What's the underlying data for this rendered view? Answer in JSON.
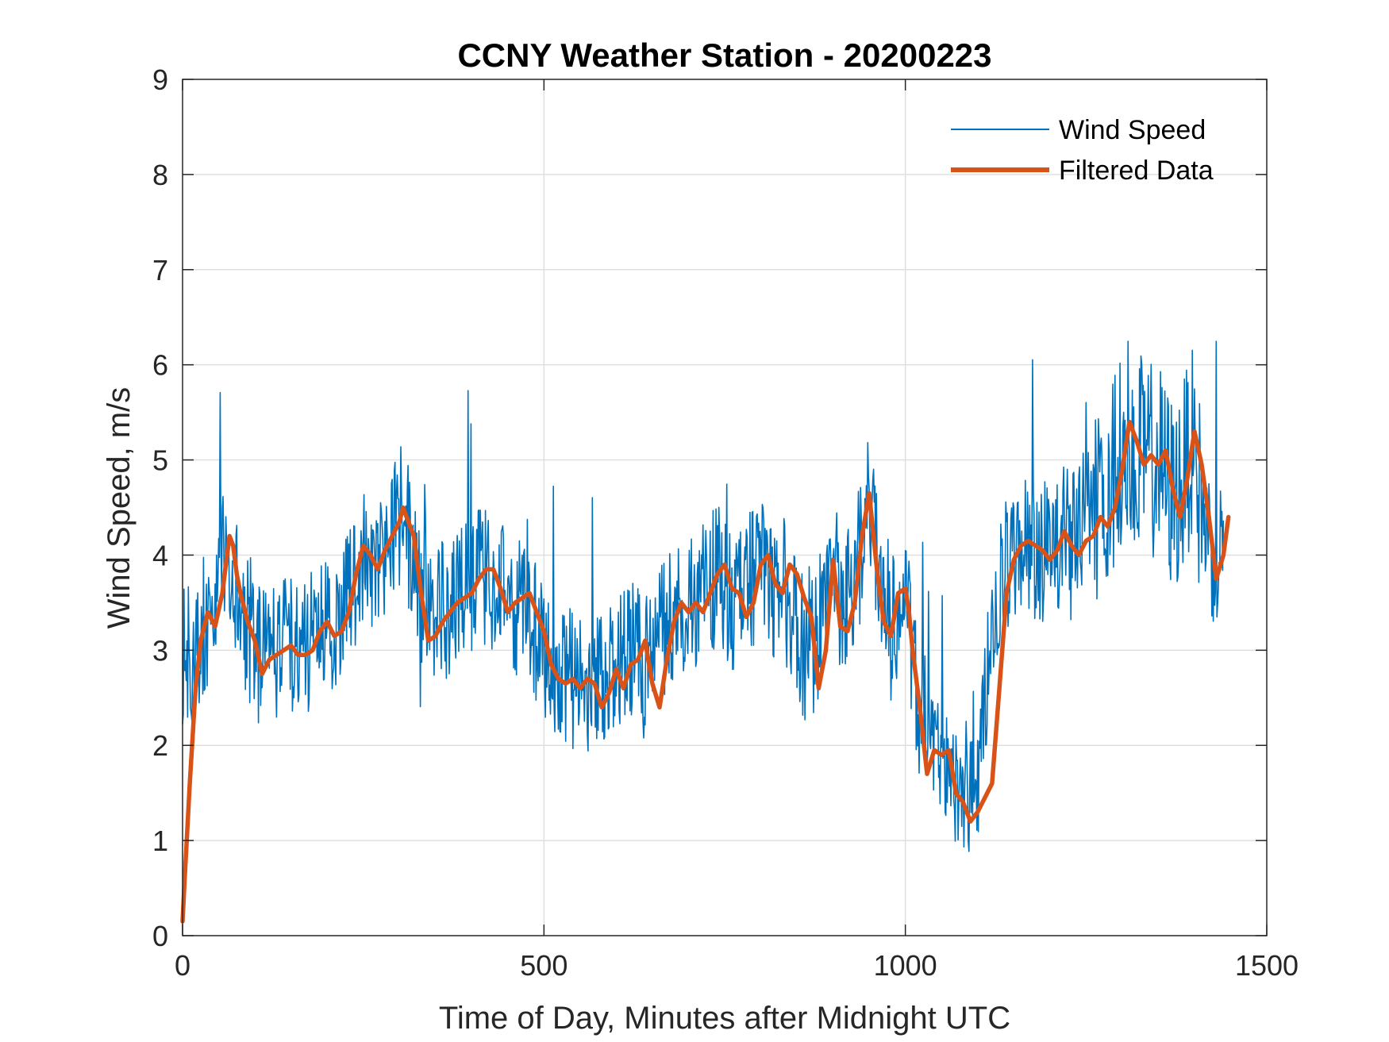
{
  "chart_data": {
    "type": "line",
    "title": "CCNY Weather Station - 20200223",
    "xlabel": "Time of Day, Minutes after Midnight UTC",
    "ylabel": "Wind Speed, m/s",
    "xlim": [
      0,
      1500
    ],
    "ylim": [
      0,
      9
    ],
    "xticks": [
      0,
      500,
      1000,
      1500
    ],
    "yticks": [
      0,
      1,
      2,
      3,
      4,
      5,
      6,
      7,
      8,
      9
    ],
    "xtick_labels": [
      "0",
      "500",
      "1000",
      "1500"
    ],
    "ytick_labels": [
      "0",
      "1",
      "2",
      "3",
      "4",
      "5",
      "6",
      "7",
      "8",
      "9"
    ],
    "grid": true,
    "legend_position": "top-right",
    "series": [
      {
        "name": "Wind Speed",
        "color": "#0072BD",
        "style": "thin",
        "noise_amplitude": 0.75,
        "x": [
          0,
          15,
          30,
          45,
          55,
          65,
          75,
          90,
          110,
          130,
          150,
          170,
          190,
          210,
          230,
          250,
          270,
          290,
          305,
          320,
          340,
          360,
          380,
          400,
          420,
          440,
          460,
          480,
          500,
          520,
          540,
          560,
          580,
          600,
          620,
          640,
          660,
          680,
          700,
          720,
          740,
          760,
          780,
          800,
          820,
          840,
          860,
          875,
          890,
          910,
          930,
          950,
          965,
          980,
          1000,
          1020,
          1040,
          1060,
          1080,
          1100,
          1120,
          1140,
          1160,
          1180,
          1200,
          1220,
          1240,
          1260,
          1280,
          1300,
          1310,
          1330,
          1350,
          1370,
          1385,
          1395,
          1410,
          1430,
          1440
        ],
        "values": [
          2.9,
          3.0,
          3.3,
          3.5,
          4.2,
          4.0,
          3.6,
          3.2,
          2.9,
          3.0,
          3.1,
          3.0,
          3.2,
          3.3,
          3.6,
          4.0,
          3.9,
          4.3,
          4.5,
          3.9,
          3.2,
          3.4,
          3.6,
          3.7,
          3.8,
          3.6,
          3.5,
          3.3,
          3.0,
          2.8,
          2.7,
          2.6,
          2.7,
          2.9,
          3.0,
          2.8,
          3.2,
          3.4,
          3.5,
          3.6,
          3.8,
          3.5,
          3.7,
          3.9,
          3.6,
          3.5,
          3.0,
          3.1,
          3.6,
          3.4,
          3.8,
          4.4,
          3.8,
          3.4,
          3.5,
          2.4,
          1.9,
          1.7,
          1.4,
          1.6,
          3.2,
          3.9,
          4.1,
          4.0,
          4.1,
          4.2,
          4.2,
          4.5,
          4.6,
          5.2,
          5.3,
          5.0,
          5.0,
          4.6,
          4.8,
          5.2,
          4.5,
          3.9,
          4.2
        ]
      },
      {
        "name": "Filtered Data",
        "color": "#D95319",
        "style": "thick",
        "x": [
          0,
          3,
          10,
          18,
          25,
          35,
          45,
          55,
          60,
          65,
          70,
          75,
          80,
          90,
          100,
          110,
          120,
          130,
          140,
          150,
          160,
          170,
          180,
          190,
          200,
          210,
          220,
          230,
          240,
          250,
          260,
          270,
          280,
          290,
          300,
          305,
          310,
          320,
          330,
          340,
          350,
          360,
          370,
          380,
          390,
          400,
          410,
          420,
          430,
          440,
          450,
          460,
          470,
          480,
          490,
          500,
          510,
          520,
          530,
          540,
          550,
          560,
          570,
          580,
          590,
          600,
          610,
          620,
          630,
          640,
          650,
          660,
          670,
          680,
          690,
          700,
          710,
          720,
          730,
          740,
          750,
          760,
          770,
          780,
          790,
          800,
          810,
          820,
          830,
          840,
          850,
          860,
          870,
          880,
          890,
          900,
          910,
          920,
          930,
          940,
          950,
          960,
          970,
          980,
          990,
          1000,
          1005,
          1010,
          1020,
          1030,
          1040,
          1050,
          1060,
          1070,
          1080,
          1090,
          1100,
          1110,
          1120,
          1130,
          1140,
          1150,
          1160,
          1170,
          1180,
          1190,
          1200,
          1210,
          1220,
          1230,
          1240,
          1250,
          1260,
          1270,
          1280,
          1290,
          1300,
          1310,
          1320,
          1330,
          1340,
          1350,
          1360,
          1370,
          1380,
          1390,
          1400,
          1410,
          1420,
          1430,
          1440,
          1447
        ],
        "values": [
          0.15,
          0.6,
          1.6,
          2.6,
          3.1,
          3.4,
          3.25,
          3.6,
          3.9,
          4.2,
          4.1,
          3.8,
          3.6,
          3.3,
          3.1,
          2.75,
          2.9,
          2.95,
          3.0,
          3.05,
          2.95,
          2.95,
          3.0,
          3.2,
          3.3,
          3.15,
          3.2,
          3.4,
          3.8,
          4.1,
          4.0,
          3.85,
          4.05,
          4.2,
          4.35,
          4.5,
          4.4,
          4.2,
          3.6,
          3.1,
          3.15,
          3.3,
          3.4,
          3.5,
          3.55,
          3.6,
          3.75,
          3.85,
          3.85,
          3.65,
          3.4,
          3.5,
          3.55,
          3.6,
          3.4,
          3.2,
          2.85,
          2.7,
          2.65,
          2.7,
          2.6,
          2.7,
          2.65,
          2.4,
          2.55,
          2.8,
          2.6,
          2.85,
          2.9,
          3.1,
          2.65,
          2.4,
          2.9,
          3.3,
          3.5,
          3.4,
          3.5,
          3.4,
          3.6,
          3.8,
          3.9,
          3.65,
          3.6,
          3.35,
          3.5,
          3.9,
          4.0,
          3.7,
          3.6,
          3.9,
          3.8,
          3.55,
          3.35,
          2.6,
          3.0,
          3.95,
          3.25,
          3.2,
          3.5,
          4.2,
          4.65,
          3.9,
          3.3,
          3.15,
          3.6,
          3.65,
          3.4,
          3.0,
          2.4,
          1.7,
          1.95,
          1.9,
          1.95,
          1.5,
          1.4,
          1.2,
          1.3,
          1.45,
          1.6,
          2.6,
          3.6,
          3.95,
          4.1,
          4.15,
          4.1,
          4.05,
          3.95,
          4.05,
          4.25,
          4.1,
          4.0,
          4.15,
          4.2,
          4.4,
          4.3,
          4.5,
          4.9,
          5.4,
          5.2,
          4.95,
          5.05,
          4.95,
          5.1,
          4.7,
          4.4,
          4.8,
          5.3,
          4.95,
          4.4,
          3.75,
          4.0,
          4.4
        ]
      }
    ]
  }
}
